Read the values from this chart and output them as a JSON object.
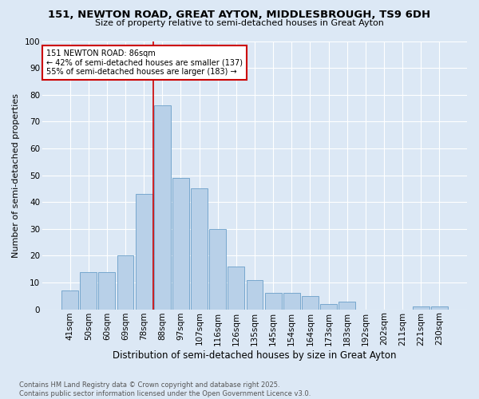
{
  "title1": "151, NEWTON ROAD, GREAT AYTON, MIDDLESBROUGH, TS9 6DH",
  "title2": "Size of property relative to semi-detached houses in Great Ayton",
  "categories": [
    "41sqm",
    "50sqm",
    "60sqm",
    "69sqm",
    "78sqm",
    "88sqm",
    "97sqm",
    "107sqm",
    "116sqm",
    "126sqm",
    "135sqm",
    "145sqm",
    "154sqm",
    "164sqm",
    "173sqm",
    "183sqm",
    "192sqm",
    "202sqm",
    "211sqm",
    "221sqm",
    "230sqm"
  ],
  "values": [
    7,
    14,
    14,
    20,
    43,
    76,
    49,
    45,
    30,
    16,
    11,
    6,
    6,
    5,
    2,
    3,
    0,
    0,
    0,
    1,
    1
  ],
  "bar_color": "#b8d0e8",
  "bar_edge_color": "#6a9fc8",
  "background_color": "#dce8f5",
  "grid_color": "#ffffff",
  "vline_x_idx": 5,
  "vline_color": "#cc0000",
  "annotation_title": "151 NEWTON ROAD: 86sqm",
  "annotation_line1": "← 42% of semi-detached houses are smaller (137)",
  "annotation_line2": "55% of semi-detached houses are larger (183) →",
  "annotation_box_color": "#ffffff",
  "annotation_box_edge": "#cc0000",
  "xlabel": "Distribution of semi-detached houses by size in Great Ayton",
  "ylabel": "Number of semi-detached properties",
  "footer": "Contains HM Land Registry data © Crown copyright and database right 2025.\nContains public sector information licensed under the Open Government Licence v3.0.",
  "ylim": [
    0,
    100
  ],
  "yticks": [
    0,
    10,
    20,
    30,
    40,
    50,
    60,
    70,
    80,
    90,
    100
  ],
  "title1_fontsize": 9.5,
  "title2_fontsize": 8.0,
  "xlabel_fontsize": 8.5,
  "ylabel_fontsize": 8.0,
  "tick_fontsize": 7.5,
  "footer_fontsize": 6.0,
  "annot_fontsize": 7.0
}
